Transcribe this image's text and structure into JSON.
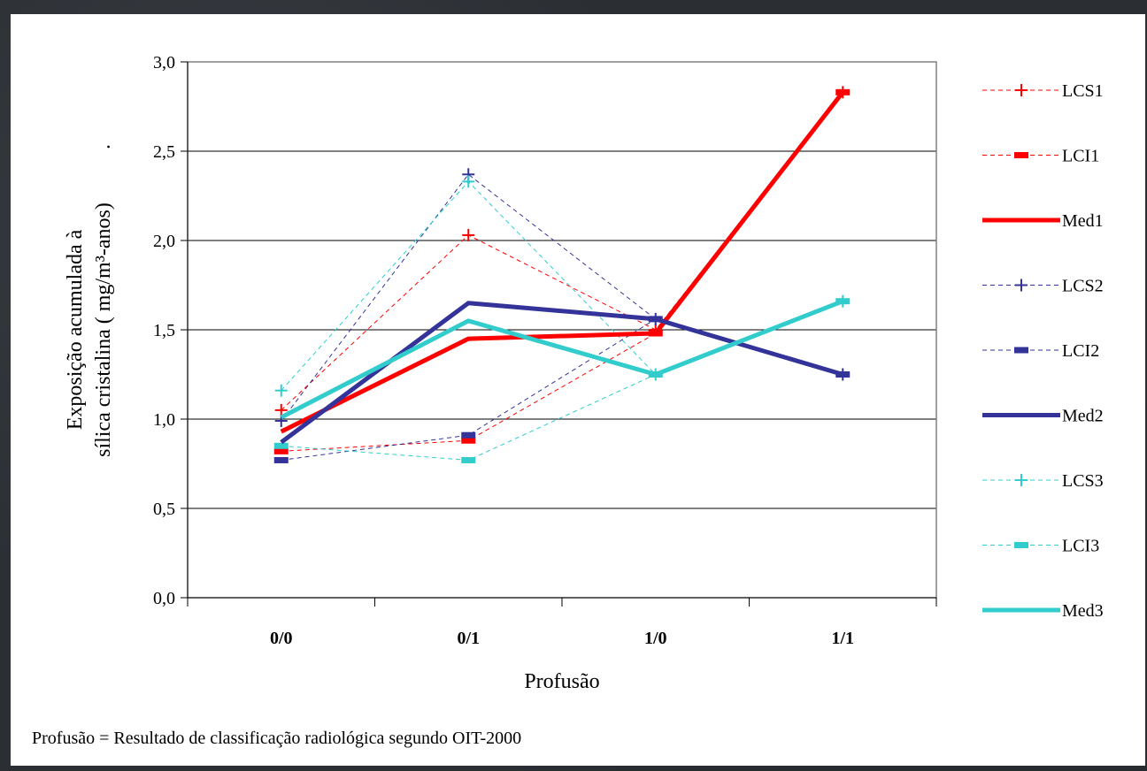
{
  "colors": {
    "series1": "#ff0000",
    "series2": "#333399",
    "series3": "#33cccc",
    "gridline": "#000000",
    "plot_border": "#808080"
  },
  "footnote": "Profusão = Resultado de classificação  radiológica segundo OIT-2000",
  "chart_data": {
    "type": "line",
    "categories": [
      "0/0",
      "0/1",
      "1/0",
      "1/1"
    ],
    "ylim": [
      0,
      3
    ],
    "yticks": [
      "0,0",
      "0,5",
      "1,0",
      "1,5",
      "2,0",
      "2,5",
      "3,0"
    ],
    "ylabel_line1": "Exposição  acumulada à",
    "ylabel_line2": "sílica cristalina ( mg/m³-anos)",
    "ylabel_dot": ".",
    "xlabel": "Profusão",
    "grid": true,
    "legend_position": "right",
    "series": [
      {
        "name": "LCS1",
        "values": [
          1.05,
          2.03,
          1.5,
          2.83
        ],
        "color": "#ff0000",
        "style": "dashed",
        "marker": "plus"
      },
      {
        "name": "LCI1",
        "values": [
          0.82,
          0.88,
          1.48,
          2.83
        ],
        "color": "#ff0000",
        "style": "dashed",
        "marker": "dash"
      },
      {
        "name": "Med1",
        "values": [
          0.93,
          1.45,
          1.48,
          2.83
        ],
        "color": "#ff0000",
        "style": "solid",
        "marker": "none"
      },
      {
        "name": "LCS2",
        "values": [
          0.99,
          2.37,
          1.56,
          1.25
        ],
        "color": "#333399",
        "style": "dashed",
        "marker": "plus"
      },
      {
        "name": "LCI2",
        "values": [
          0.77,
          0.91,
          1.56,
          1.25
        ],
        "color": "#333399",
        "style": "dashed",
        "marker": "dash"
      },
      {
        "name": "Med2",
        "values": [
          0.87,
          1.65,
          1.56,
          1.25
        ],
        "color": "#333399",
        "style": "solid",
        "marker": "none"
      },
      {
        "name": "LCS3",
        "values": [
          1.16,
          2.33,
          1.25,
          1.66
        ],
        "color": "#33cccc",
        "style": "dashed",
        "marker": "plus"
      },
      {
        "name": "LCI3",
        "values": [
          0.85,
          0.77,
          1.25,
          1.66
        ],
        "color": "#33cccc",
        "style": "dashed",
        "marker": "dash"
      },
      {
        "name": "Med3",
        "values": [
          1.01,
          1.55,
          1.25,
          1.66
        ],
        "color": "#33cccc",
        "style": "solid",
        "marker": "none"
      }
    ]
  }
}
